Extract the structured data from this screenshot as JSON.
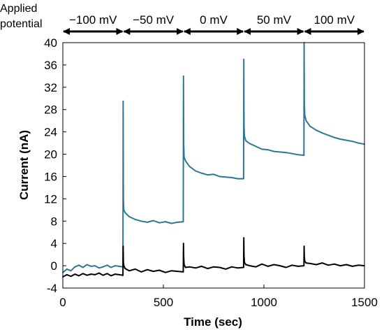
{
  "chart_data": {
    "type": "line",
    "title": "",
    "xlabel": "Time (sec)",
    "ylabel": "Current (nA)",
    "xlim": [
      0,
      1500
    ],
    "ylim": [
      -4,
      40
    ],
    "xticks": [
      0,
      500,
      1000,
      1500
    ],
    "yticks": [
      -4,
      0,
      4,
      8,
      12,
      16,
      20,
      24,
      28,
      32,
      36,
      40
    ],
    "grid": false,
    "legend": "none",
    "top_annotation": {
      "label_lines": [
        "Applied",
        "potential"
      ],
      "segments": [
        {
          "label": "−100 mV",
          "x_start": 0,
          "x_end": 300
        },
        {
          "label": "−50 mV",
          "x_start": 300,
          "x_end": 600
        },
        {
          "label": "0 mV",
          "x_start": 600,
          "x_end": 900
        },
        {
          "label": "50 mV",
          "x_start": 900,
          "x_end": 1200
        },
        {
          "label": "100 mV",
          "x_start": 1200,
          "x_end": 1500
        }
      ]
    },
    "series": [
      {
        "color": "#2e7694",
        "x": [
          0,
          20,
          40,
          60,
          80,
          100,
          120,
          140,
          160,
          180,
          200,
          220,
          240,
          260,
          280,
          299,
          300,
          301,
          303,
          310,
          330,
          360,
          390,
          420,
          450,
          480,
          510,
          540,
          570,
          599,
          600,
          601,
          603,
          610,
          630,
          660,
          690,
          720,
          750,
          780,
          810,
          840,
          870,
          899,
          900,
          901,
          903,
          910,
          930,
          960,
          990,
          1020,
          1050,
          1080,
          1110,
          1140,
          1170,
          1199,
          1200,
          1201,
          1203,
          1210,
          1230,
          1260,
          1290,
          1320,
          1350,
          1380,
          1410,
          1440,
          1470,
          1500
        ],
        "values": [
          -1.2,
          -0.6,
          -0.9,
          -0.2,
          0.1,
          -0.3,
          0.2,
          -0.1,
          0.0,
          -0.4,
          -0.2,
          0.1,
          -0.3,
          0.0,
          -0.1,
          -0.2,
          29.5,
          12.0,
          10.0,
          9.5,
          8.8,
          8.3,
          8.0,
          7.8,
          8.1,
          7.7,
          7.9,
          7.6,
          7.8,
          7.9,
          34.0,
          22.0,
          19.5,
          18.8,
          17.8,
          17.0,
          16.6,
          16.3,
          16.4,
          16.0,
          15.9,
          15.8,
          15.6,
          15.6,
          37.0,
          25.0,
          23.2,
          22.4,
          21.9,
          21.4,
          20.9,
          20.8,
          20.5,
          20.4,
          20.3,
          20.1,
          19.9,
          19.8,
          40.0,
          29.0,
          27.0,
          26.0,
          25.0,
          24.3,
          23.8,
          23.4,
          23.0,
          22.7,
          22.5,
          22.3,
          22.0,
          21.8
        ]
      },
      {
        "color": "#000000",
        "x": [
          0,
          20,
          40,
          60,
          80,
          100,
          120,
          140,
          160,
          180,
          200,
          220,
          240,
          260,
          280,
          299,
          300,
          301,
          303,
          310,
          330,
          360,
          390,
          420,
          450,
          480,
          510,
          540,
          570,
          599,
          600,
          601,
          603,
          610,
          630,
          660,
          690,
          720,
          750,
          780,
          810,
          840,
          870,
          899,
          900,
          901,
          903,
          910,
          930,
          960,
          990,
          1020,
          1050,
          1080,
          1110,
          1140,
          1170,
          1199,
          1200,
          1201,
          1203,
          1210,
          1230,
          1260,
          1290,
          1320,
          1350,
          1380,
          1410,
          1440,
          1470,
          1500
        ],
        "values": [
          -2.0,
          -1.6,
          -1.9,
          -1.5,
          -1.8,
          -1.4,
          -1.7,
          -1.5,
          -1.6,
          -1.3,
          -1.7,
          -1.4,
          -1.8,
          -1.5,
          -1.6,
          -1.7,
          3.5,
          0.8,
          0.0,
          -0.5,
          -0.9,
          -0.6,
          -1.1,
          -0.7,
          -1.0,
          -0.8,
          -1.2,
          -0.9,
          -1.0,
          -1.1,
          4.0,
          1.5,
          0.2,
          -0.3,
          -0.2,
          -0.4,
          -0.1,
          -0.5,
          -0.2,
          -0.3,
          -0.6,
          -0.2,
          -0.4,
          -0.3,
          5.0,
          1.8,
          0.6,
          0.2,
          0.0,
          -0.2,
          0.3,
          -0.1,
          0.2,
          0.0,
          -0.3,
          0.1,
          -0.1,
          0.0,
          3.5,
          1.6,
          0.8,
          0.5,
          0.4,
          0.2,
          0.5,
          0.1,
          0.3,
          0.0,
          0.2,
          -0.1,
          0.1,
          0.0
        ]
      }
    ]
  }
}
